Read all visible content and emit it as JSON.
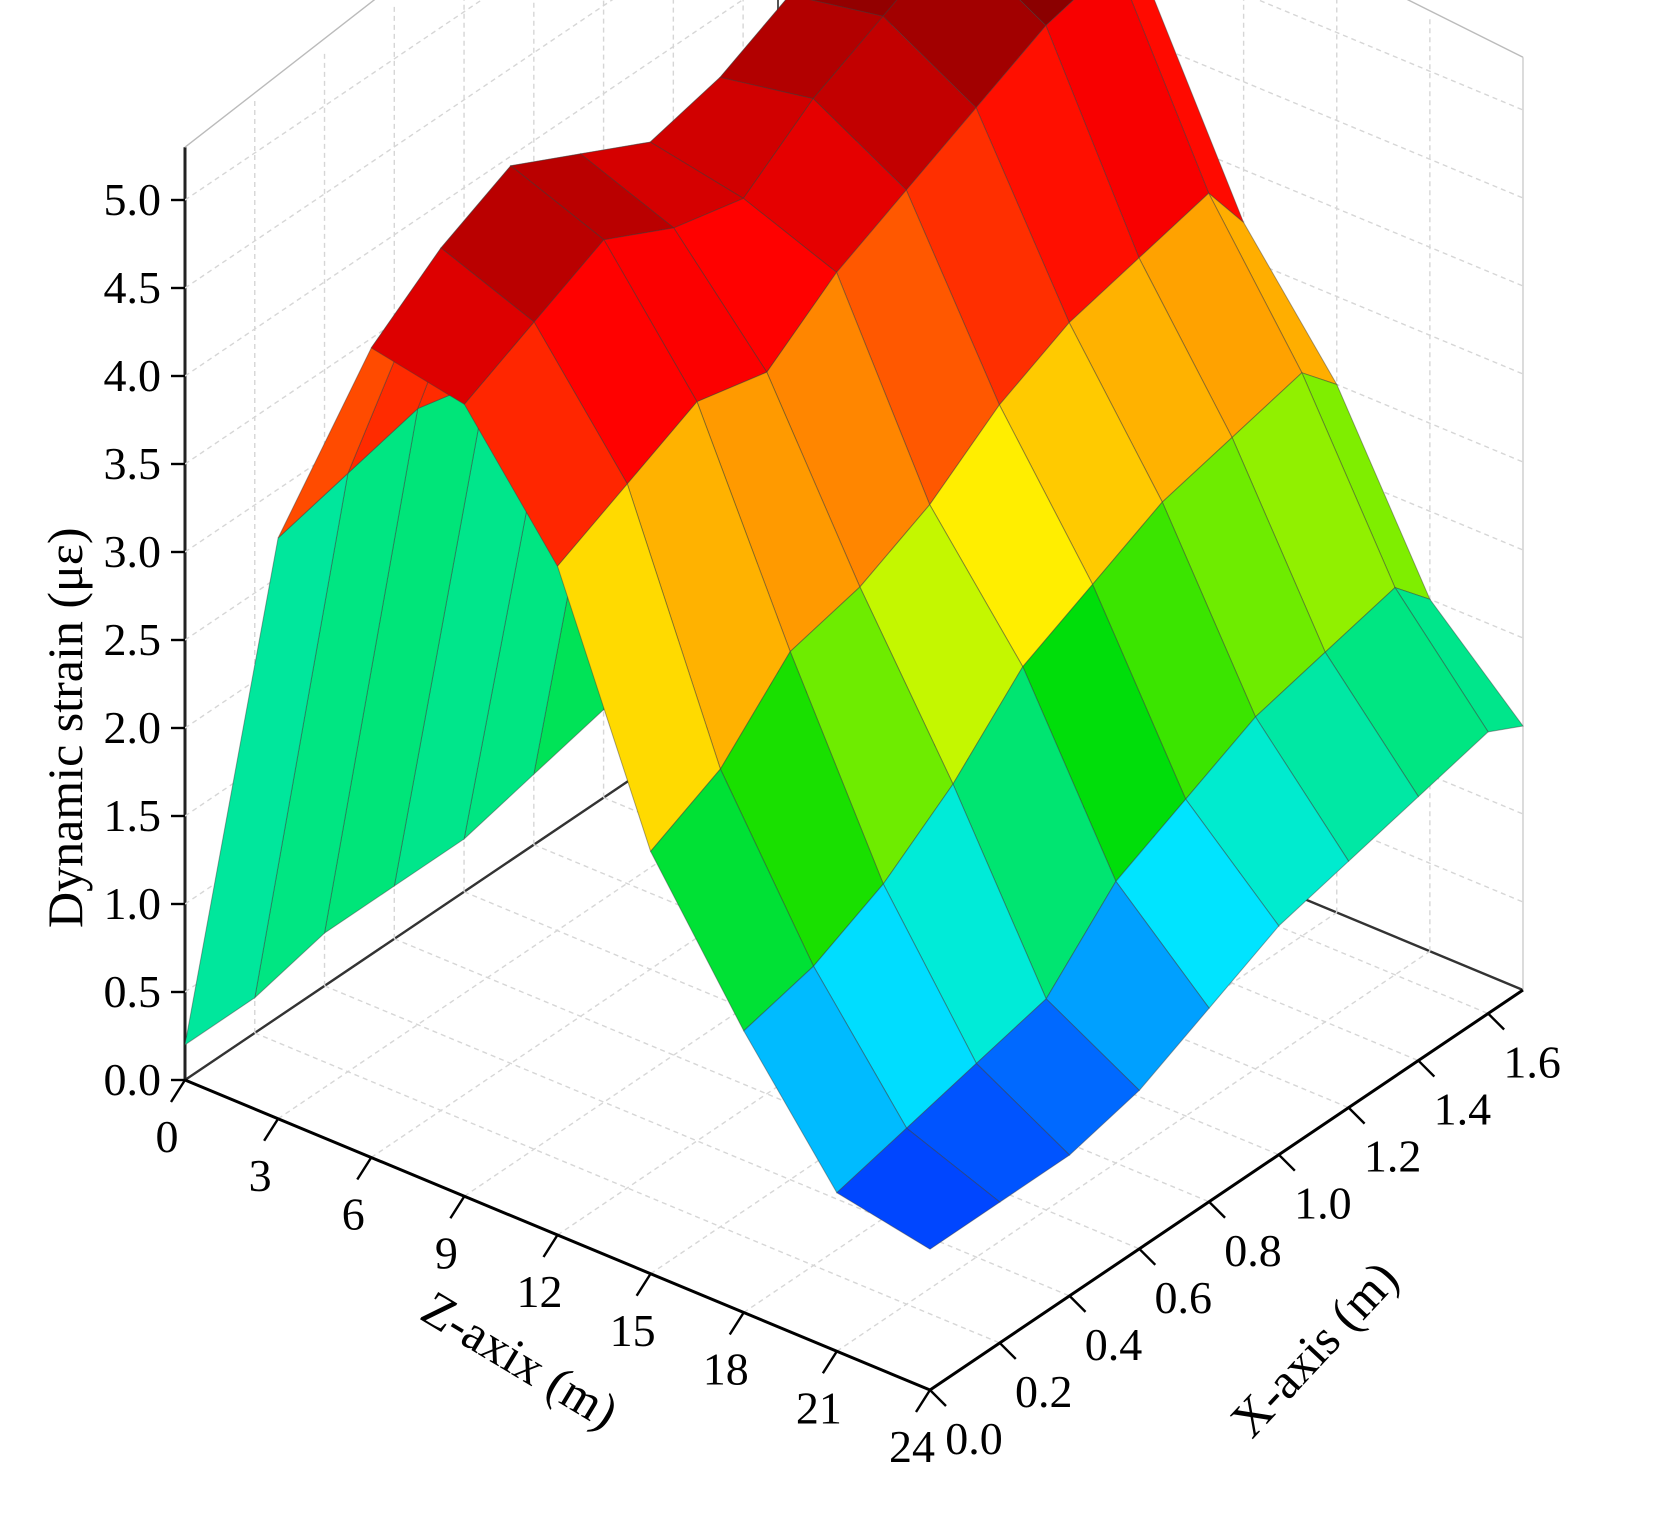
{
  "chart_data": {
    "type": "surface",
    "title": "",
    "xlabel": "X-axis (m)",
    "zlabel": "Z-axix (m)",
    "ylabel": "Dynamic strain (με)",
    "x_ticks": [
      "0.0",
      "0.2",
      "0.4",
      "0.6",
      "0.8",
      "1.0",
      "1.2",
      "1.4",
      "1.6"
    ],
    "z_ticks": [
      "0",
      "3",
      "6",
      "9",
      "12",
      "15",
      "18",
      "21",
      "24"
    ],
    "y_ticks": [
      "0.0",
      "0.5",
      "1.0",
      "1.5",
      "2.0",
      "2.5",
      "3.0",
      "3.5",
      "4.0",
      "4.5",
      "5.0"
    ],
    "xlim": [
      0,
      1.7
    ],
    "zlim": [
      0,
      24
    ],
    "ylim": [
      0,
      5.3
    ],
    "colormap": [
      "#8800aa",
      "#0022ff",
      "#00eeff",
      "#00dd00",
      "#ffff00",
      "#ff8800",
      "#ff0000",
      "#8b0000"
    ],
    "grid": true,
    "x": [
      0.0,
      0.2,
      0.4,
      0.6,
      0.8,
      1.0,
      1.2,
      1.4,
      1.6,
      1.7
    ],
    "z": [
      0,
      3,
      6,
      9,
      12,
      15,
      18,
      21,
      24
    ],
    "strain_rows": [
      [
        0.2,
        3.3,
        4.6,
        4.5,
        3.8,
        2.4,
        1.6,
        0.9,
        0.8
      ],
      [
        0.2,
        3.4,
        4.9,
        4.7,
        4.0,
        2.6,
        1.7,
        1.0,
        0.8
      ],
      [
        0.3,
        3.5,
        5.1,
        4.9,
        4.2,
        3.0,
        1.9,
        1.1,
        0.8
      ],
      [
        0.3,
        3.4,
        4.9,
        4.7,
        4.1,
        3.1,
        2.2,
        1.2,
        0.9
      ],
      [
        0.3,
        3.3,
        4.7,
        4.6,
        4.4,
        3.3,
        2.6,
        1.6,
        1.1
      ],
      [
        0.4,
        3.4,
        4.8,
        4.9,
        4.6,
        3.6,
        2.8,
        1.8,
        1.3
      ],
      [
        0.5,
        3.6,
        5.0,
        5.1,
        4.8,
        3.8,
        3.0,
        2.0,
        1.4
      ],
      [
        0.6,
        3.8,
        5.2,
        5.3,
        5.0,
        3.9,
        3.1,
        2.1,
        1.5
      ],
      [
        0.7,
        3.9,
        5.3,
        5.4,
        5.1,
        4.0,
        3.2,
        2.2,
        1.6
      ],
      [
        0.8,
        3.7,
        5.0,
        5.1,
        4.8,
        3.7,
        3.0,
        2.0,
        1.5
      ]
    ]
  }
}
